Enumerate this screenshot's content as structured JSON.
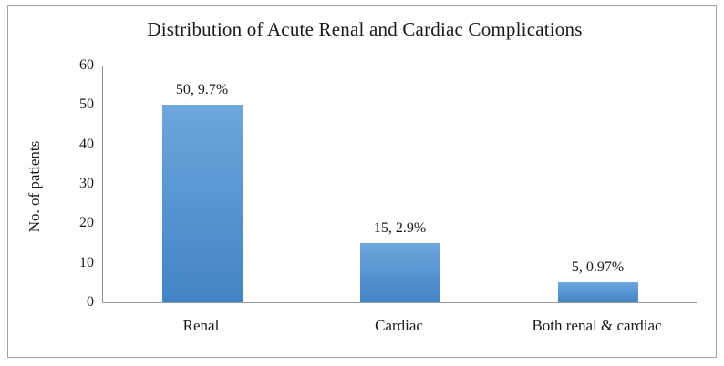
{
  "chart_data": {
    "type": "bar",
    "title": "Distribution of Acute Renal and Cardiac Complications",
    "ylabel": "No. of patients",
    "xlabel": "",
    "categories": [
      "Renal",
      "Cardiac",
      "Both renal & cardiac"
    ],
    "values": [
      50,
      15,
      5
    ],
    "data_labels": [
      "50, 9.7%",
      "15, 2.9%",
      "5, 0.97%"
    ],
    "ylim": [
      0,
      60
    ],
    "yticks": [
      0,
      10,
      20,
      30,
      40,
      50,
      60
    ],
    "grid": false,
    "legend": "none",
    "colors": {
      "bar_top": "#6ea6dd",
      "bar_bottom": "#4384c6",
      "axis_line": "#8c8c8c",
      "frame_border": "#a3a3a3",
      "text": "#1a1a1a"
    }
  }
}
